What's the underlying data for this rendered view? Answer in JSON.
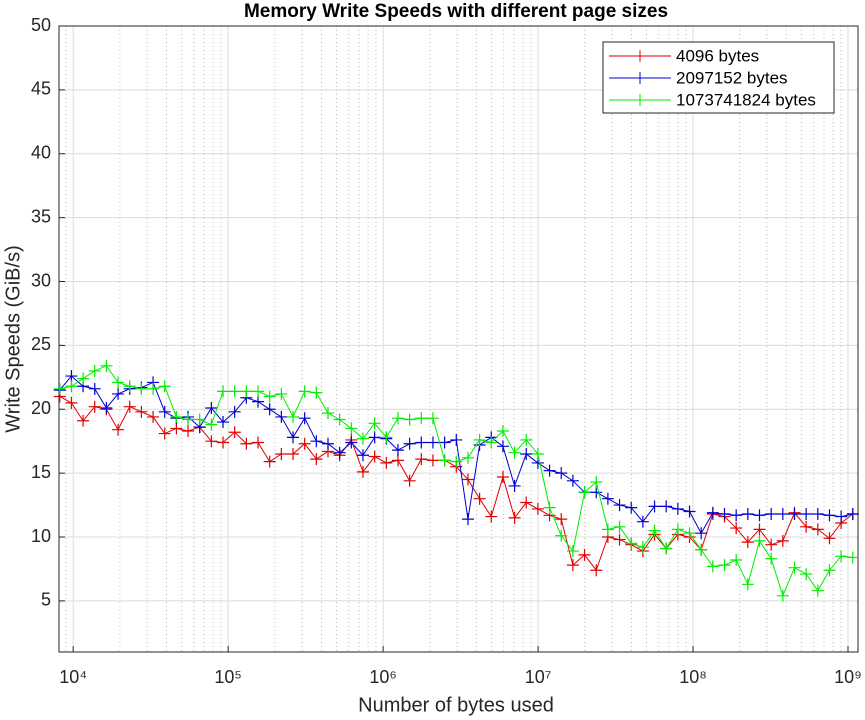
{
  "chart_data": {
    "type": "line",
    "title": "Memory Write Speeds with different page sizes",
    "x_label": "Number of bytes used",
    "y_label": "Write Speeds (GiB/s)",
    "log_x": true,
    "grid": true,
    "minor_grid": true,
    "legend_position": "upper-right",
    "x": [
      8192,
      9742,
      11585,
      13777,
      16384,
      19484,
      23170,
      27554,
      32768,
      38968,
      46341,
      55109,
      65536,
      77936,
      92682,
      110218,
      131072,
      155872,
      185364,
      220436,
      262144,
      311744,
      370728,
      440872,
      524288,
      623487,
      741455,
      881744,
      1048576,
      1246974,
      1482910,
      1763488,
      2097152,
      2493948,
      2965821,
      3526975,
      4194304,
      4987896,
      5931642,
      7053950,
      8388608,
      9975792,
      11863283,
      14107901,
      16777216,
      19951584,
      23726566,
      28215802,
      33554432,
      39903168,
      47453133,
      56431603,
      67108864,
      79806336,
      94906266,
      112863206,
      134217728,
      159612672,
      189812531,
      225726412,
      268435456,
      319225344,
      379625062,
      451452825,
      536870912,
      638450688,
      759250125,
      902905649,
      1073741824
    ],
    "series": [
      {
        "name": "4096 bytes",
        "color": "#e00000",
        "values": [
          21.0,
          20.5,
          19.1,
          20.2,
          20.0,
          18.4,
          20.2,
          19.8,
          19.4,
          18.1,
          18.5,
          18.3,
          18.6,
          17.5,
          17.4,
          18.2,
          17.3,
          17.4,
          15.9,
          16.5,
          16.5,
          17.3,
          16.1,
          16.7,
          16.4,
          17.6,
          15.1,
          16.3,
          15.8,
          16.0,
          14.4,
          16.1,
          16.0,
          16.0,
          15.5,
          14.5,
          13.0,
          11.6,
          14.7,
          11.5,
          12.7,
          12.2,
          11.7,
          11.4,
          7.8,
          8.6,
          7.4,
          10.0,
          9.8,
          9.4,
          8.9,
          10.2,
          9.1,
          10.2,
          10.0,
          9.0,
          11.8,
          11.6,
          10.7,
          9.6,
          10.6,
          9.4,
          9.7,
          11.9,
          10.8,
          10.6,
          9.9,
          11.1,
          11.8
        ]
      },
      {
        "name": "2097152 bytes",
        "color": "#0000d0",
        "values": [
          21.5,
          22.6,
          21.8,
          21.6,
          20.1,
          21.2,
          21.6,
          21.7,
          22.1,
          19.8,
          19.3,
          19.4,
          18.6,
          20.1,
          19.0,
          19.8,
          20.9,
          20.6,
          20.0,
          19.4,
          17.8,
          19.3,
          17.5,
          17.3,
          16.6,
          17.4,
          16.4,
          17.8,
          17.7,
          16.8,
          17.3,
          17.4,
          17.4,
          17.4,
          17.6,
          11.4,
          17.2,
          17.8,
          17.1,
          14.0,
          16.5,
          15.8,
          15.2,
          15.0,
          14.4,
          13.5,
          13.5,
          13.0,
          12.5,
          12.3,
          11.2,
          12.4,
          12.4,
          12.2,
          12.0,
          10.3,
          11.9,
          11.8,
          11.7,
          11.8,
          11.7,
          11.8,
          11.8,
          11.8,
          11.8,
          11.8,
          11.7,
          11.6,
          11.8
        ]
      },
      {
        "name": "1073741824 bytes",
        "color": "#00ee00",
        "values": [
          21.6,
          21.8,
          22.4,
          23.0,
          23.4,
          22.1,
          21.8,
          21.6,
          21.6,
          21.8,
          19.4,
          19.2,
          19.2,
          18.8,
          21.4,
          21.4,
          21.4,
          21.4,
          21.0,
          21.2,
          19.4,
          21.4,
          21.3,
          19.7,
          19.2,
          18.5,
          17.7,
          18.9,
          17.8,
          19.3,
          19.2,
          19.3,
          19.3,
          16.0,
          15.9,
          16.2,
          17.6,
          17.4,
          18.3,
          16.6,
          17.6,
          16.5,
          12.3,
          10.1,
          8.9,
          13.5,
          14.3,
          10.6,
          10.8,
          9.5,
          9.2,
          10.5,
          9.1,
          10.6,
          10.3,
          9.0,
          7.7,
          7.8,
          8.2,
          6.3,
          9.7,
          8.3,
          5.4,
          7.6,
          7.1,
          5.8,
          7.4,
          8.5,
          8.4
        ]
      }
    ],
    "xlim": [
      8100,
      1160000000
    ],
    "xticks": [
      {
        "value": 10000,
        "label": "10⁴"
      },
      {
        "value": 100000,
        "label": "10⁵"
      },
      {
        "value": 1000000,
        "label": "10⁶"
      },
      {
        "value": 10000000,
        "label": "10⁷"
      },
      {
        "value": 100000000,
        "label": "10⁸"
      },
      {
        "value": 1000000000,
        "label": "10⁹"
      }
    ],
    "ylim": [
      1,
      50
    ],
    "yticks": [
      5,
      10,
      15,
      20,
      25,
      30,
      35,
      40,
      45,
      50
    ]
  }
}
